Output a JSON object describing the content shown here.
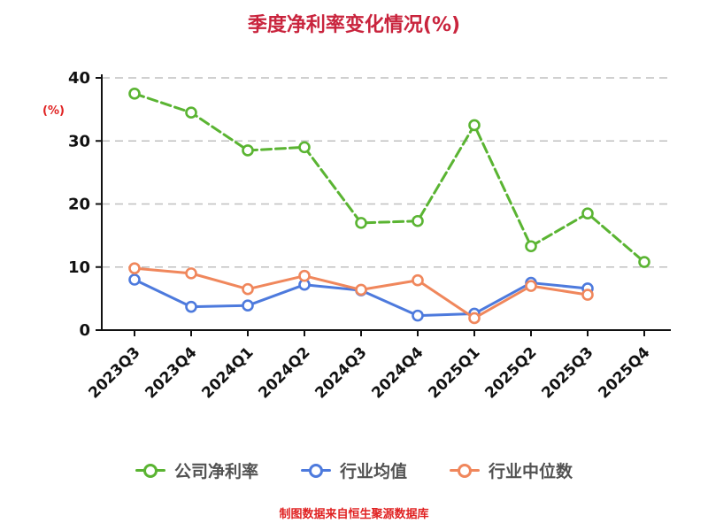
{
  "title": "季度净利率变化情况(%)",
  "y_axis_label": "(%)",
  "footer": "制图数据来自恒生聚源数据库",
  "colors": {
    "title": "#c9243d",
    "y_axis_label": "#e02222",
    "footer": "#e02222",
    "axis": "#111111",
    "grid": "#c0c0c0",
    "tick_label": "#111111",
    "legend_text": "#525252",
    "background": "#ffffff"
  },
  "chart_data": {
    "type": "line",
    "title": "季度净利率变化情况(%)",
    "xlabel": "",
    "ylabel": "(%)",
    "ylim": [
      0,
      40
    ],
    "yticks": [
      0,
      10,
      20,
      30,
      40
    ],
    "grid": "horizontal-dashed",
    "legend_position": "bottom",
    "categories": [
      "2023Q3",
      "2023Q4",
      "2024Q1",
      "2024Q2",
      "2024Q3",
      "2024Q4",
      "2025Q1",
      "2025Q2",
      "2025Q3",
      "2025Q4"
    ],
    "series": [
      {
        "name": "公司净利率",
        "color": "#5ab432",
        "dashed": true,
        "values": [
          37.5,
          34.5,
          28.5,
          29.0,
          17.0,
          17.3,
          32.5,
          13.3,
          18.5,
          10.8
        ]
      },
      {
        "name": "行业均值",
        "color": "#4d7add",
        "dashed": false,
        "values": [
          8.0,
          3.7,
          3.9,
          7.2,
          6.3,
          2.3,
          2.6,
          7.5,
          6.6,
          null
        ]
      },
      {
        "name": "行业中位数",
        "color": "#f0875c",
        "dashed": false,
        "values": [
          9.8,
          9.0,
          6.5,
          8.6,
          6.4,
          7.9,
          1.9,
          7.0,
          5.6,
          null
        ]
      }
    ]
  }
}
